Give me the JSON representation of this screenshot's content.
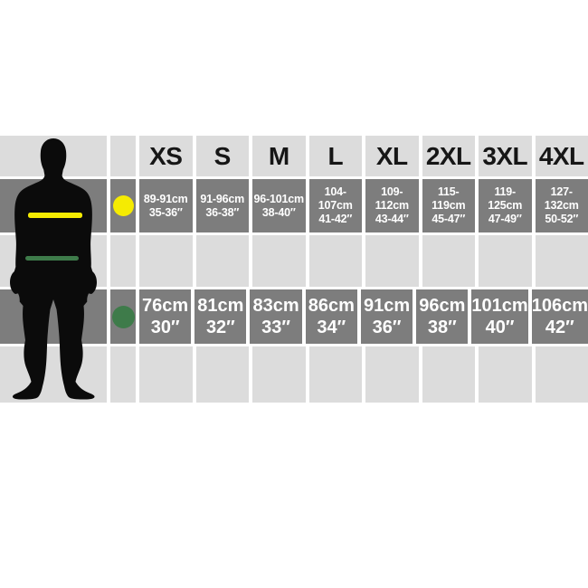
{
  "page": {
    "background": "#ffffff"
  },
  "chart_data": {
    "type": "table",
    "columns": [
      "XS",
      "S",
      "M",
      "L",
      "XL",
      "2XL",
      "3XL",
      "4XL"
    ],
    "rows": [
      {
        "label": "chest",
        "indicator_color": "#f5eb02",
        "values_cm": [
          "89-91cm",
          "91-96cm",
          "96-101cm",
          "104-107cm",
          "109-112cm",
          "115-119cm",
          "119-125cm",
          "127-132cm"
        ],
        "values_in": [
          "35-36″",
          "36-38″",
          "38-40″",
          "41-42″",
          "43-44″",
          "45-47″",
          "47-49″",
          "50-52″"
        ]
      },
      {
        "label": "waist",
        "indicator_color": "#3e7b4a",
        "values_cm": [
          "76cm",
          "81cm",
          "83cm",
          "86cm",
          "91cm",
          "96cm",
          "101cm",
          "106cm"
        ],
        "values_in": [
          "30″",
          "32″",
          "33″",
          "34″",
          "36″",
          "38″",
          "40″",
          "42″"
        ]
      }
    ],
    "layout_hints": {
      "row_band_dark": "#7d7d7d",
      "row_band_light": "#dcdcdc",
      "gap_color": "#ffffff",
      "header_text_color": "#161616",
      "cell_text_color": "#ffffff",
      "silhouette_color": "#0b0b0b",
      "chest_line_color": "#f5eb02",
      "waist_line_color": "#3e7b4a"
    }
  }
}
